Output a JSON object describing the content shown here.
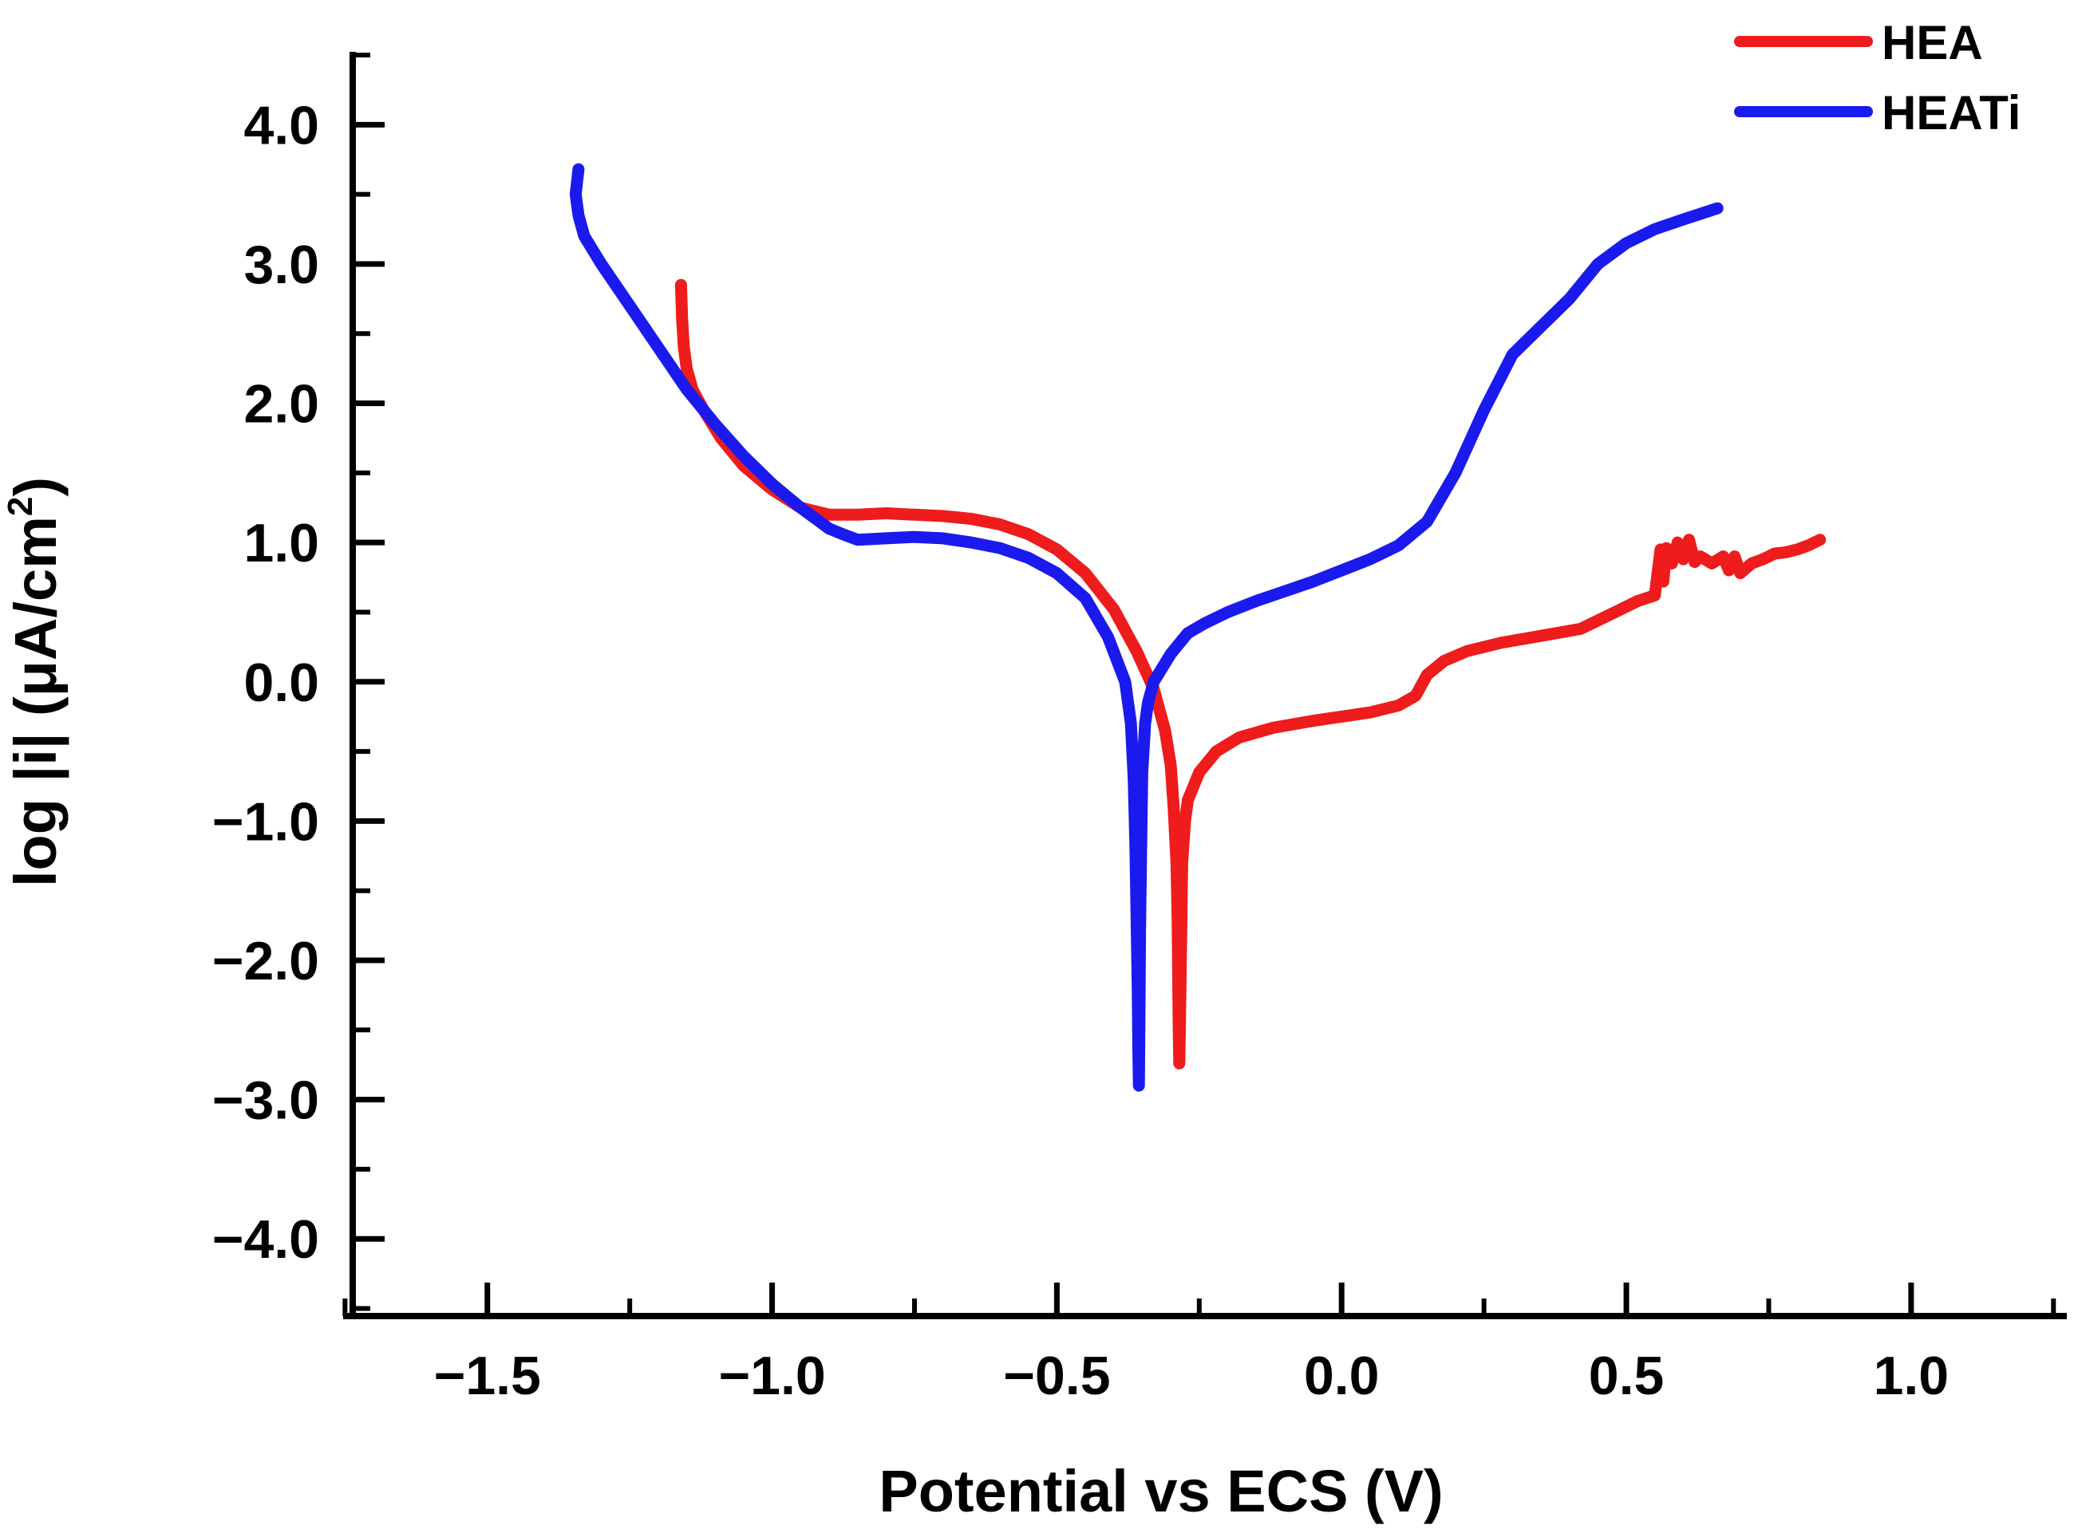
{
  "chart_data": {
    "type": "line",
    "title": "",
    "xlabel": "Potential vs ECS (V)",
    "ylabel_prefix": "log |i| (μA/cm",
    "ylabel_sup": "2",
    "ylabel_suffix": ")",
    "xlim": [
      -1.75,
      1.25
    ],
    "ylim": [
      -4.5,
      4.5
    ],
    "x_ticks": [
      -1.5,
      -1.0,
      -0.5,
      0.0,
      0.5,
      1.0
    ],
    "x_tick_labels": [
      "−1.5",
      "−1.0",
      "−0.5",
      "0.0",
      "0.5",
      "1.0"
    ],
    "y_ticks": [
      4,
      3,
      2,
      1,
      0,
      -1,
      -2,
      -3,
      -4
    ],
    "y_tick_labels": [
      "4.0",
      "3.0",
      "2.0",
      "1.0",
      "0.0",
      "−1.0",
      "−2.0",
      "−3.0",
      "−4.0"
    ],
    "legend_position": "top-right",
    "series": [
      {
        "name": "HEA",
        "color": "#ee1c1c",
        "x": [
          -1.16,
          -1.158,
          -1.155,
          -1.15,
          -1.14,
          -1.12,
          -1.09,
          -1.05,
          -1.0,
          -0.95,
          -0.9,
          -0.85,
          -0.8,
          -0.75,
          -0.7,
          -0.65,
          -0.6,
          -0.55,
          -0.5,
          -0.45,
          -0.4,
          -0.36,
          -0.33,
          -0.31,
          -0.3,
          -0.295,
          -0.29,
          -0.288,
          -0.287,
          -0.286,
          -0.285,
          -0.284,
          -0.282,
          -0.28,
          -0.275,
          -0.27,
          -0.26,
          -0.25,
          -0.22,
          -0.18,
          -0.12,
          -0.05,
          0.0,
          0.05,
          0.1,
          0.13,
          0.15,
          0.18,
          0.22,
          0.28,
          0.35,
          0.42,
          0.48,
          0.52,
          0.55,
          0.56,
          0.565,
          0.57,
          0.58,
          0.59,
          0.6,
          0.61,
          0.62,
          0.63,
          0.65,
          0.67,
          0.68,
          0.69,
          0.7,
          0.72,
          0.74,
          0.76,
          0.78,
          0.8,
          0.82,
          0.84
        ],
        "y": [
          2.85,
          2.6,
          2.4,
          2.25,
          2.1,
          1.95,
          1.75,
          1.55,
          1.38,
          1.25,
          1.2,
          1.2,
          1.21,
          1.2,
          1.19,
          1.17,
          1.13,
          1.06,
          0.95,
          0.78,
          0.52,
          0.22,
          -0.05,
          -0.35,
          -0.6,
          -0.9,
          -1.3,
          -1.7,
          -2.1,
          -2.5,
          -2.74,
          -2.5,
          -1.9,
          -1.3,
          -1.0,
          -0.85,
          -0.75,
          -0.65,
          -0.5,
          -0.4,
          -0.33,
          -0.28,
          -0.25,
          -0.22,
          -0.17,
          -0.1,
          0.05,
          0.15,
          0.22,
          0.28,
          0.33,
          0.38,
          0.5,
          0.58,
          0.62,
          0.95,
          0.72,
          0.96,
          0.85,
          1.0,
          0.88,
          1.02,
          0.86,
          0.9,
          0.85,
          0.9,
          0.8,
          0.9,
          0.78,
          0.85,
          0.88,
          0.92,
          0.93,
          0.95,
          0.98,
          1.02
        ]
      },
      {
        "name": "HEATi",
        "color": "#1a1aee",
        "x": [
          -1.34,
          -1.345,
          -1.34,
          -1.33,
          -1.3,
          -1.25,
          -1.2,
          -1.15,
          -1.1,
          -1.05,
          -1.0,
          -0.95,
          -0.9,
          -0.87,
          -0.85,
          -0.8,
          -0.75,
          -0.7,
          -0.65,
          -0.6,
          -0.55,
          -0.5,
          -0.45,
          -0.41,
          -0.38,
          -0.37,
          -0.365,
          -0.362,
          -0.36,
          -0.358,
          -0.357,
          -0.356,
          -0.355,
          -0.354,
          -0.352,
          -0.35,
          -0.345,
          -0.34,
          -0.33,
          -0.3,
          -0.27,
          -0.24,
          -0.2,
          -0.15,
          -0.1,
          -0.05,
          0.0,
          0.05,
          0.1,
          0.15,
          0.2,
          0.25,
          0.3,
          0.35,
          0.4,
          0.45,
          0.5,
          0.55,
          0.6,
          0.66
        ],
        "y": [
          3.68,
          3.5,
          3.35,
          3.2,
          3.0,
          2.7,
          2.4,
          2.1,
          1.85,
          1.62,
          1.42,
          1.25,
          1.1,
          1.05,
          1.02,
          1.03,
          1.04,
          1.03,
          1.0,
          0.96,
          0.89,
          0.78,
          0.6,
          0.32,
          0.0,
          -0.3,
          -0.7,
          -1.2,
          -1.7,
          -2.2,
          -2.6,
          -2.9,
          -2.4,
          -1.8,
          -1.2,
          -0.65,
          -0.3,
          -0.15,
          0.0,
          0.2,
          0.35,
          0.42,
          0.5,
          0.58,
          0.65,
          0.72,
          0.8,
          0.88,
          0.98,
          1.15,
          1.5,
          1.95,
          2.35,
          2.55,
          2.75,
          3.0,
          3.15,
          3.25,
          3.32,
          3.4
        ]
      }
    ]
  }
}
